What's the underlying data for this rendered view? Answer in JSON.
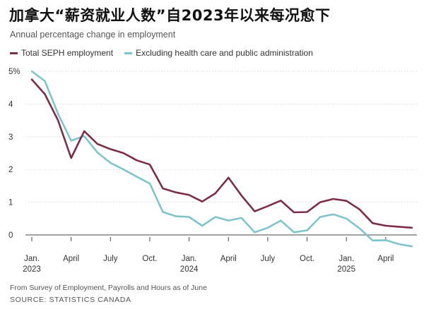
{
  "chart_data": {
    "type": "line",
    "title": "加拿大“薪资就业人数”自2023年以来每况愈下",
    "subtitle": "Annual percentage change in employment",
    "xlabel": "",
    "ylabel": "",
    "ylim": [
      -0.35,
      5.0
    ],
    "y_ticks": [
      {
        "value": 5,
        "label": "5%"
      },
      {
        "value": 4,
        "label": "4"
      },
      {
        "value": 3,
        "label": "3"
      },
      {
        "value": 2,
        "label": "2"
      },
      {
        "value": 1,
        "label": "1"
      },
      {
        "value": 0,
        "label": "0"
      }
    ],
    "x_ticks": [
      {
        "index": 0,
        "label": "Jan.",
        "year": "2023"
      },
      {
        "index": 3,
        "label": "April",
        "year": ""
      },
      {
        "index": 6,
        "label": "July",
        "year": ""
      },
      {
        "index": 9,
        "label": "Oct.",
        "year": ""
      },
      {
        "index": 12,
        "label": "Jan.",
        "year": "2024"
      },
      {
        "index": 15,
        "label": "April",
        "year": ""
      },
      {
        "index": 18,
        "label": "July",
        "year": ""
      },
      {
        "index": 21,
        "label": "Oct.",
        "year": ""
      },
      {
        "index": 24,
        "label": "Jan.",
        "year": "2025"
      },
      {
        "index": 27,
        "label": "April",
        "year": ""
      }
    ],
    "categories": [
      "Jan. 2023",
      "Feb. 2023",
      "Mar. 2023",
      "Apr. 2023",
      "May 2023",
      "Jun. 2023",
      "Jul. 2023",
      "Aug. 2023",
      "Sep. 2023",
      "Oct. 2023",
      "Nov. 2023",
      "Dec. 2023",
      "Jan. 2024",
      "Feb. 2024",
      "Mar. 2024",
      "Apr. 2024",
      "May 2024",
      "Jun. 2024",
      "Jul. 2024",
      "Aug. 2024",
      "Sep. 2024",
      "Oct. 2024",
      "Nov. 2024",
      "Dec. 2024",
      "Jan. 2025",
      "Feb. 2025",
      "Mar. 2025",
      "Apr. 2025",
      "May 2025",
      "Jun. 2025"
    ],
    "series": [
      {
        "name": "Total SEPH employment",
        "color": "#7b2d4b",
        "values": [
          4.75,
          4.3,
          3.5,
          2.35,
          3.17,
          2.78,
          2.62,
          2.5,
          2.28,
          2.15,
          1.42,
          1.3,
          1.22,
          1.02,
          1.27,
          1.75,
          1.2,
          0.72,
          0.88,
          1.05,
          0.69,
          0.7,
          1.0,
          1.1,
          1.04,
          0.78,
          0.36,
          0.28,
          0.25,
          0.22
        ]
      },
      {
        "name": "Excluding health care and public administration",
        "color": "#7fc4cc",
        "values": [
          5.0,
          4.7,
          3.7,
          2.88,
          3.02,
          2.52,
          2.2,
          2.0,
          1.78,
          1.57,
          0.7,
          0.57,
          0.55,
          0.28,
          0.55,
          0.44,
          0.52,
          0.08,
          0.22,
          0.44,
          0.08,
          0.14,
          0.55,
          0.63,
          0.5,
          0.2,
          -0.17,
          -0.16,
          -0.28,
          -0.35
        ]
      }
    ]
  },
  "footnote": "From Survey of Employment, Payrolls and Hours as of June",
  "source": "SOURCE: STATISTICS CANADA"
}
